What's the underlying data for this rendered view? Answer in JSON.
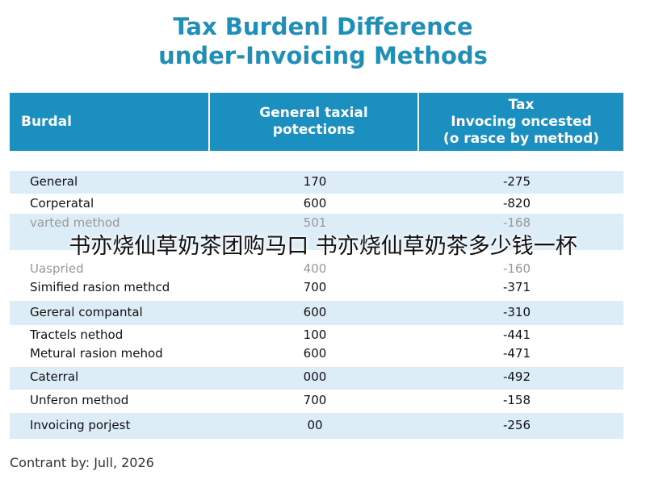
{
  "header": {
    "title_lines": [
      "Tax Burdenl Difference",
      "under-Invoicing Methods"
    ]
  },
  "table": {
    "columns": [
      [
        "Burdal"
      ],
      [
        "General taxial",
        "potections"
      ],
      [
        "Tax",
        "Invocing oncested",
        "(o rasce by method)"
      ]
    ],
    "rows": [
      [
        "General",
        "170",
        "-275"
      ],
      [
        "Corperatal",
        "600",
        "-820"
      ],
      [
        "varted method",
        "501",
        "-168"
      ],
      [
        "Uaspried",
        "400",
        "-160"
      ],
      [
        "Simified rasion methcd",
        "700",
        "-371"
      ],
      [
        "Gereral compantal",
        "600",
        "-310"
      ],
      [
        "Tractels nethod",
        "100",
        "-441"
      ],
      [
        "Metural rasion mehod",
        "600",
        "-471"
      ],
      [
        "Caterral",
        "000",
        "-492"
      ],
      [
        "Unferon method",
        "700",
        "-158"
      ],
      [
        "Invoicing porjest",
        "00",
        "-256"
      ]
    ]
  },
  "overlay_text": "书亦烧仙草奶茶团购马口 书亦烧仙草奶茶多少钱一杯",
  "footer": "Contrant by: Jull, 2026"
}
